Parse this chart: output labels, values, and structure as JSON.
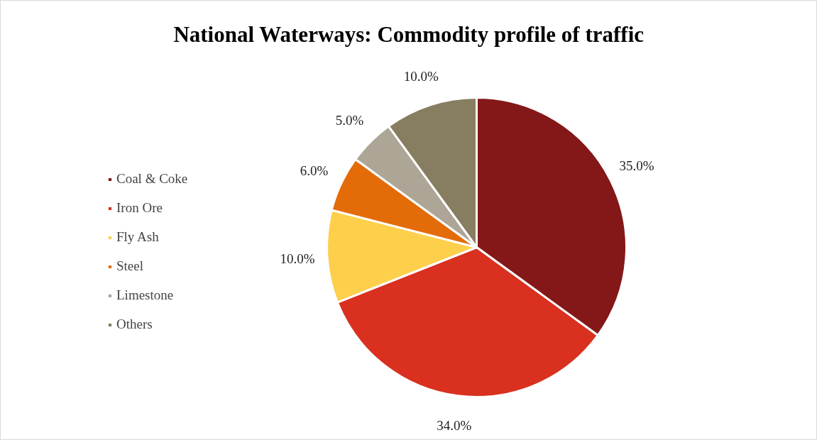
{
  "chart_data": {
    "type": "pie",
    "title": "National Waterways: Commodity profile of traffic",
    "categories": [
      "Coal & Coke",
      "Iron Ore",
      "Fly Ash",
      "Steel",
      "Limestone",
      "Others"
    ],
    "values": [
      35.0,
      34.0,
      10.0,
      6.0,
      5.0,
      10.0
    ],
    "colors": [
      "#841818",
      "#d9301f",
      "#fecf4a",
      "#e36c09",
      "#ada595",
      "#877d60"
    ],
    "value_labels": [
      "35.0%",
      "34.0%",
      "10.0%",
      "6.0%",
      "5.0%",
      "10.0%"
    ],
    "legend": "left"
  }
}
